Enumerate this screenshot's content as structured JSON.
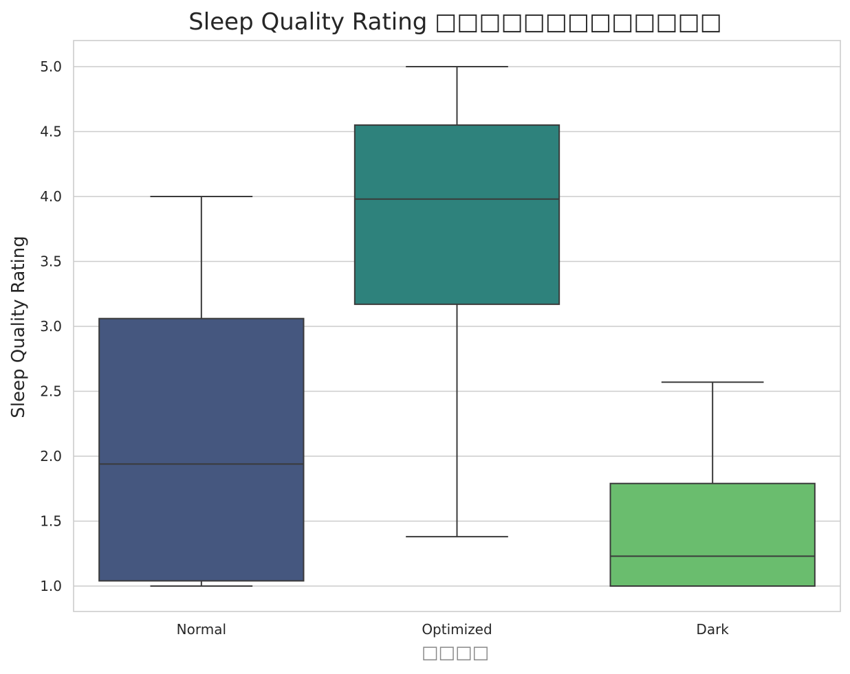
{
  "chart_data": {
    "type": "box",
    "title": "Sleep Quality Rating □□□□□□□□□□□□□",
    "xlabel": "□□□□",
    "ylabel": "Sleep Quality Rating",
    "categories": [
      "Normal",
      "Optimized",
      "Dark"
    ],
    "ylim": [
      0.8,
      5.2
    ],
    "yticks": [
      "1.0",
      "1.5",
      "2.0",
      "2.5",
      "3.0",
      "3.5",
      "4.0",
      "4.5",
      "5.0"
    ],
    "grid": true,
    "boxes": [
      {
        "category": "Normal",
        "whisker_low": 1.0,
        "q1": 1.04,
        "median": 1.94,
        "q3": 3.06,
        "whisker_high": 4.0,
        "color": "#45577f"
      },
      {
        "category": "Optimized",
        "whisker_low": 1.38,
        "q1": 3.17,
        "median": 3.98,
        "q3": 4.55,
        "whisker_high": 5.0,
        "color": "#2e827c"
      },
      {
        "category": "Dark",
        "whisker_low": 1.0,
        "q1": 1.0,
        "median": 1.23,
        "q3": 1.79,
        "whisker_high": 2.57,
        "color": "#6abd6e"
      }
    ]
  }
}
